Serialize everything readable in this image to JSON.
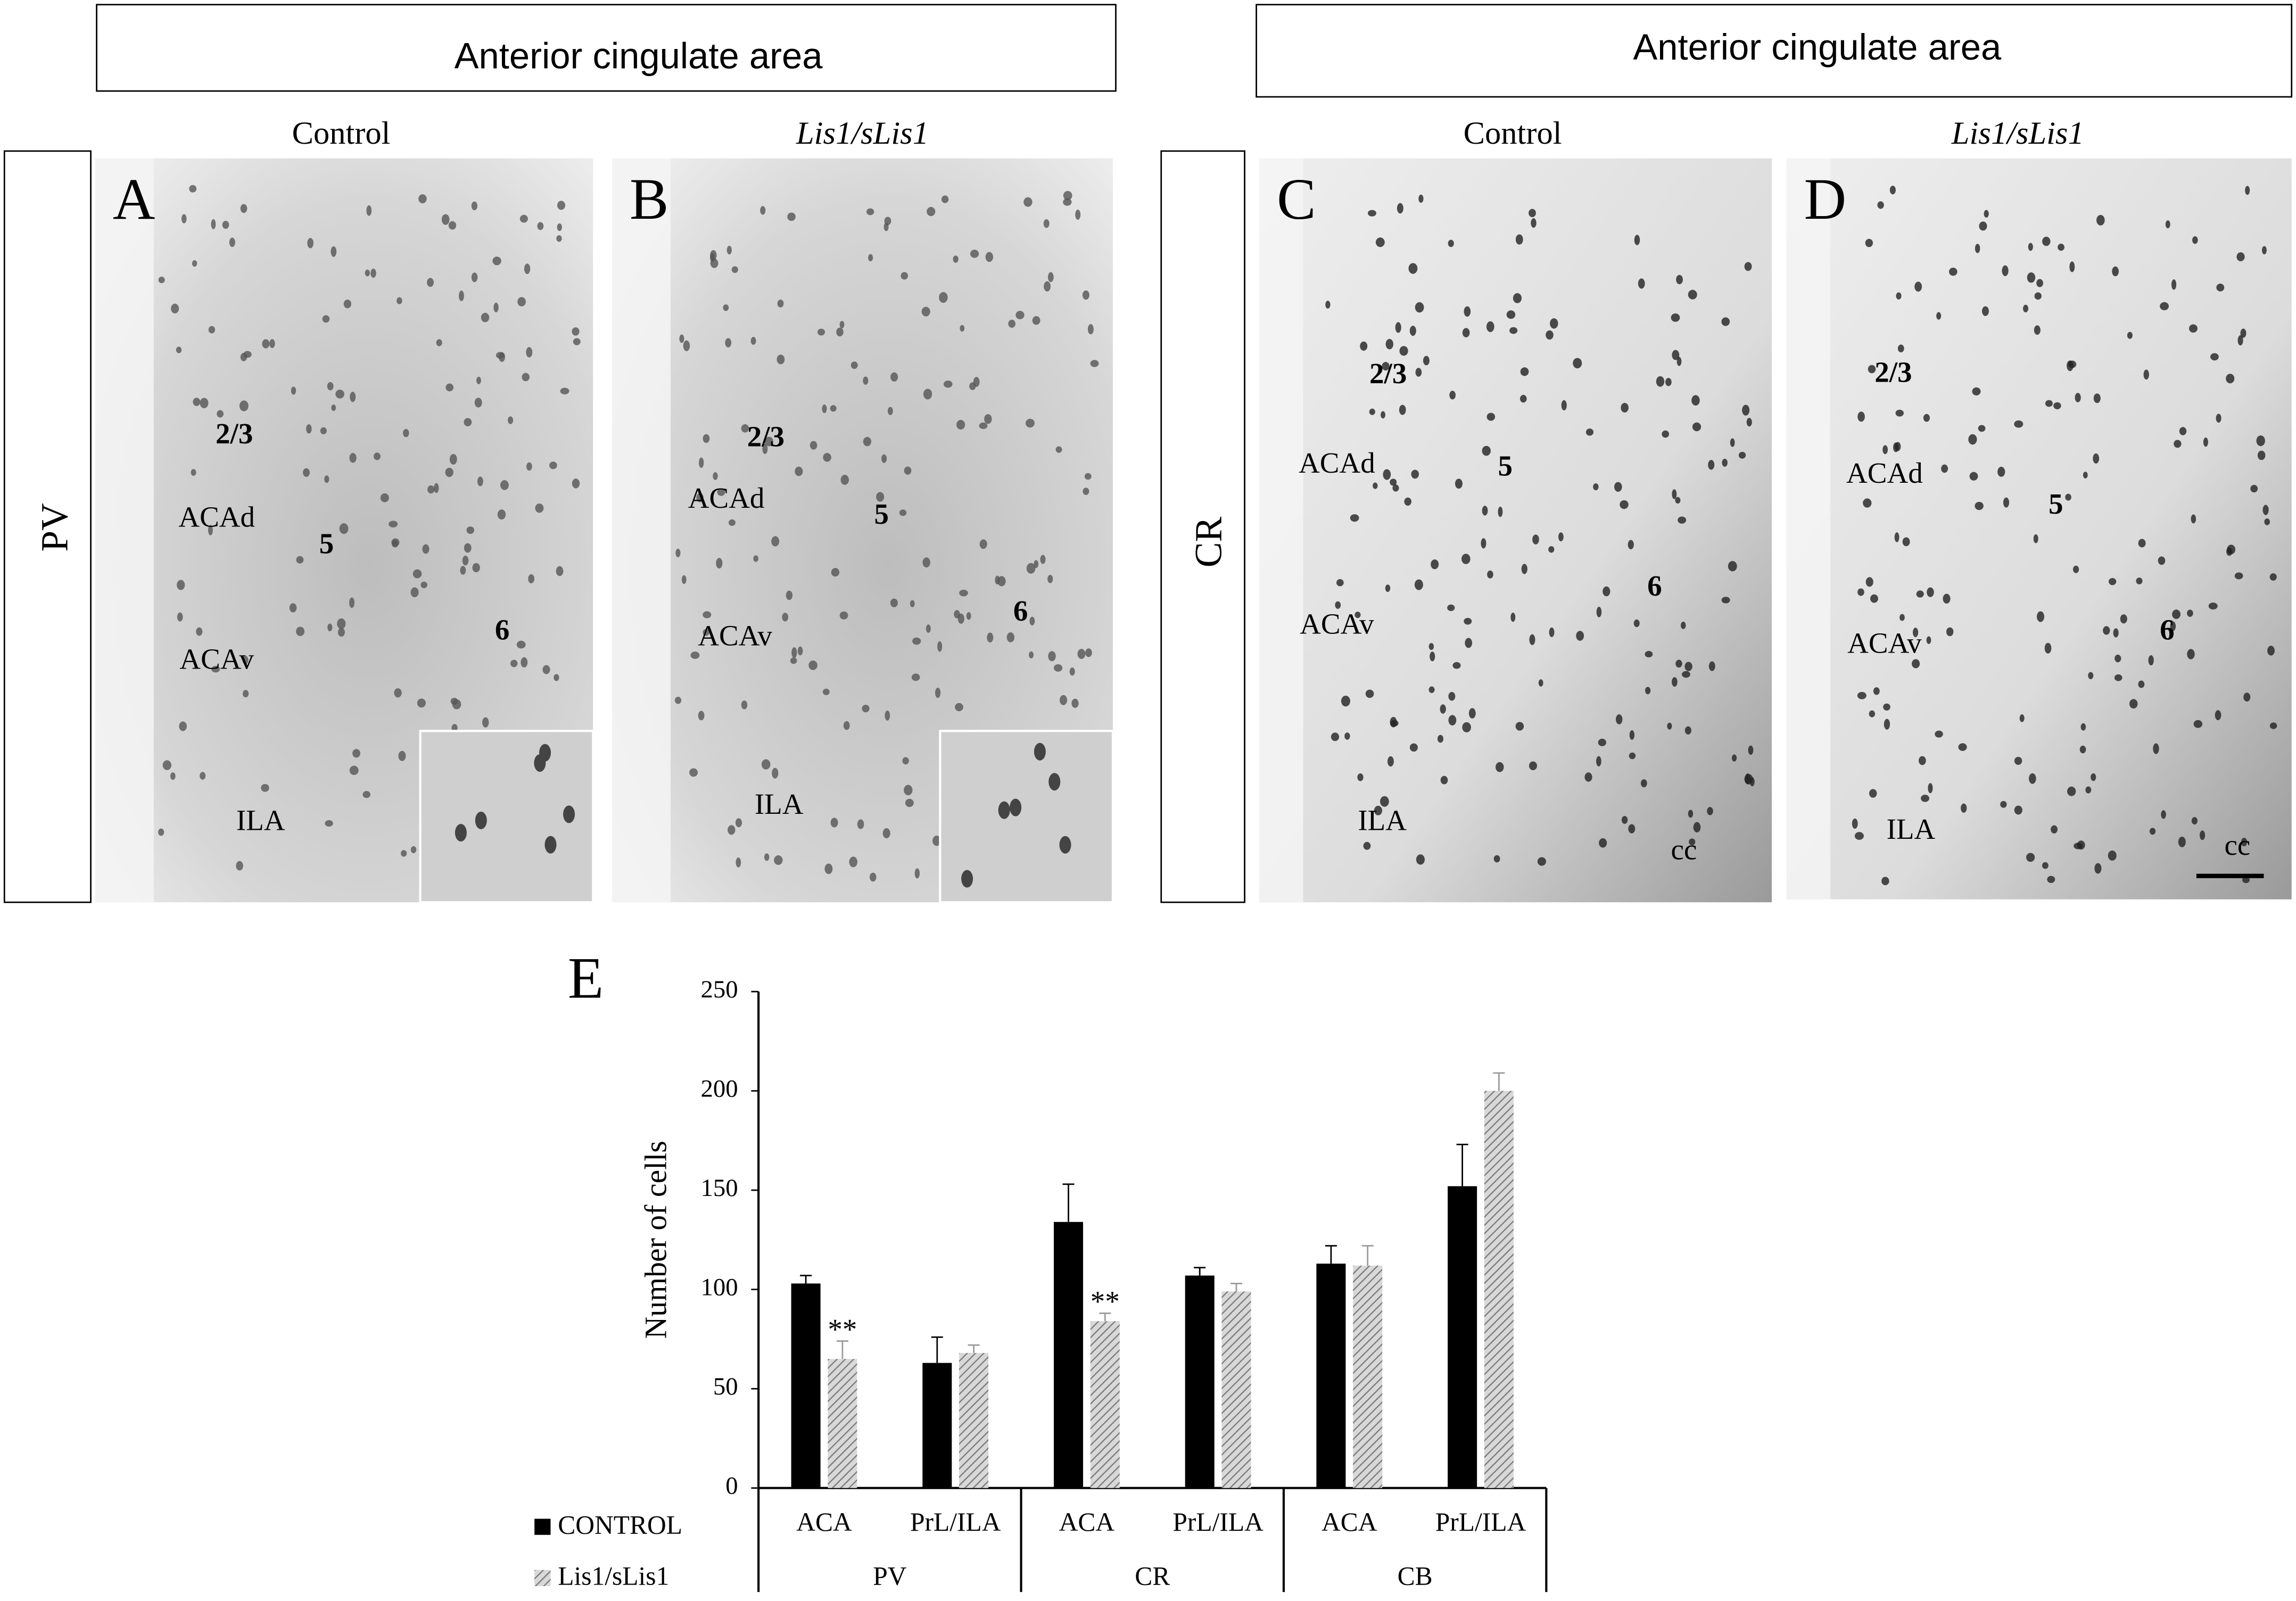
{
  "header": [
    "Anterior cingulate area",
    "Anterior cingulate area"
  ],
  "rows": [
    "PV",
    "CR"
  ],
  "panels": [
    {
      "letter": "A",
      "condition": "Control",
      "labels": [
        "2/3",
        "ACAd",
        "5",
        "ACAv",
        "6",
        "ILA"
      ]
    },
    {
      "letter": "B",
      "condition": "Lis1/sLis1",
      "labels": [
        "2/3",
        "ACAd",
        "5",
        "ACAv",
        "6",
        "ILA"
      ]
    },
    {
      "letter": "C",
      "condition": "Control",
      "labels": [
        "2/3",
        "ACAd",
        "5",
        "ACAv",
        "6",
        "ILA",
        "cc"
      ]
    },
    {
      "letter": "D",
      "condition": "Lis1/sLis1",
      "labels": [
        "2/3",
        "ACAd",
        "5",
        "ACAv",
        "6",
        "ILA",
        "cc"
      ]
    }
  ],
  "chart_data": {
    "type": "bar",
    "panel": "E",
    "ylabel": "Number of cells",
    "categories": [
      "ACA",
      "PrL/ILA",
      "ACA",
      "PrL/ILA",
      "ACA",
      "PrL/ILA"
    ],
    "groups": [
      "PV",
      "CR",
      "CB"
    ],
    "series": [
      {
        "name": "CONTROL",
        "color": "#000000",
        "values": [
          103,
          63,
          134,
          107,
          113,
          152
        ],
        "errors": [
          4,
          13,
          19,
          4,
          9,
          21
        ]
      },
      {
        "name": "Lis1/sLis1",
        "color": "#9a9a9a",
        "values": [
          65,
          68,
          84,
          99,
          112,
          200
        ],
        "errors": [
          9,
          4,
          4,
          4,
          10,
          9
        ],
        "significance": [
          "**",
          null,
          "**",
          null,
          null,
          null
        ]
      }
    ],
    "ylim": [
      0,
      250
    ],
    "yticks": [
      0,
      50,
      100,
      150,
      200,
      250
    ]
  }
}
